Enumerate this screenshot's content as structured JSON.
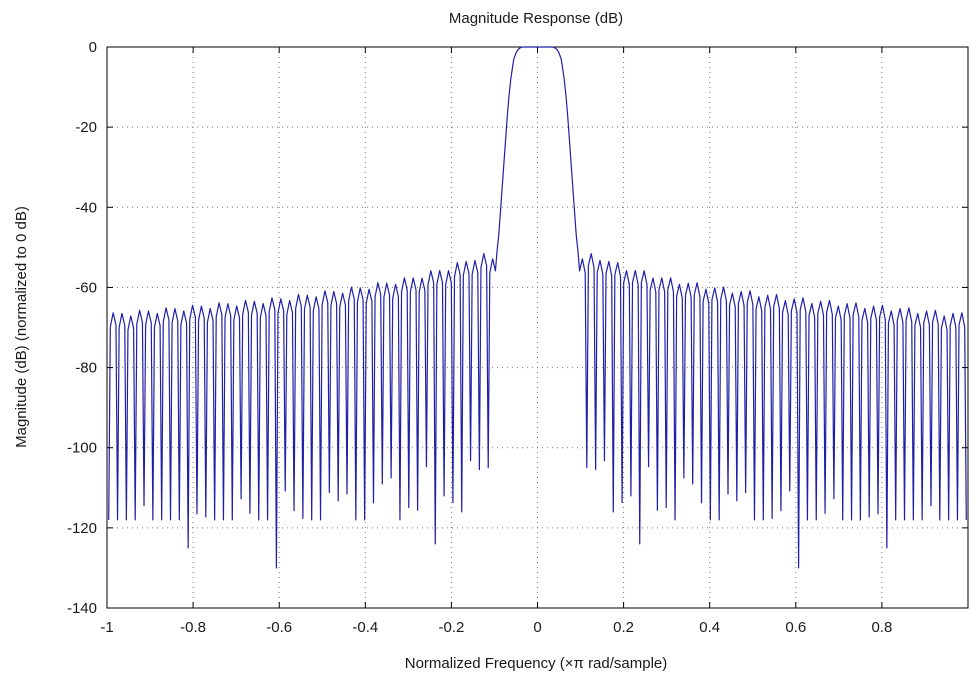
{
  "chart_data": {
    "type": "line",
    "title": "Magnitude Response (dB)",
    "xlabel": "Normalized Frequency (×π rad/sample)",
    "ylabel": "Magnitude (dB) (normalized to 0 dB)",
    "xlim": [
      -1,
      1
    ],
    "ylim": [
      -140,
      0
    ],
    "grid": true,
    "x_ticks": [
      -1,
      -0.8,
      -0.6,
      -0.4,
      -0.2,
      0,
      0.2,
      0.4,
      0.6,
      0.8
    ],
    "x_tick_labels": [
      "-1",
      "-0.8",
      "-0.6",
      "-0.4",
      "-0.2",
      "0",
      "0.2",
      "0.4",
      "0.6",
      "0.8"
    ],
    "y_ticks": [
      0,
      -20,
      -40,
      -60,
      -80,
      -100,
      -120,
      -140
    ],
    "y_tick_labels": [
      "0",
      "-20",
      "-40",
      "-60",
      "-80",
      "-100",
      "-120",
      "-140"
    ],
    "series": [
      {
        "color": "#1f1fa8",
        "passband": {
          "x": [
            -0.058,
            -0.055,
            -0.05,
            -0.045,
            -0.04,
            -0.035,
            -0.03,
            -0.02,
            -0.01,
            0,
            0.01,
            0.02,
            0.03,
            0.035,
            0.04,
            0.045,
            0.05,
            0.055,
            0.058
          ],
          "y": [
            -5,
            -3,
            -1.5,
            -0.6,
            -0.2,
            0,
            0,
            0,
            0,
            0,
            0,
            0,
            0,
            0,
            -0.2,
            -0.6,
            -1.5,
            -3,
            -5
          ]
        },
        "transition": {
          "x": [
            0.058,
            0.062,
            0.066,
            0.07,
            0.074,
            0.078,
            0.082,
            0.086,
            0.09,
            0.094
          ],
          "y": [
            -5,
            -8,
            -12,
            -17,
            -23,
            -29,
            -35,
            -41,
            -47,
            -51
          ]
        },
        "stopband_ripple_peaks": {
          "x": [
            0.1,
            0.13,
            0.2,
            0.3,
            0.4,
            0.5,
            0.6,
            0.7,
            0.8,
            0.9,
            1.0
          ],
          "y": [
            -53,
            -52,
            -55,
            -58,
            -60,
            -61.5,
            -63,
            -64,
            -65,
            -66,
            -67
          ]
        },
        "stopband_nulls": {
          "x": [
            0.094,
            0.2,
            0.3,
            0.4,
            0.5,
            0.6,
            0.7,
            0.8,
            0.9,
            1.0
          ],
          "y": [
            -108,
            -110,
            -112,
            -115,
            -117,
            -119,
            -120,
            -121,
            -122,
            -123
          ]
        },
        "deep_nulls": {
          "x": [
            -0.814,
            -0.607,
            -0.232,
            0.235,
            0.61,
            0.812
          ],
          "y": [
            -125,
            -130,
            -124,
            -124,
            -130,
            -125
          ]
        },
        "ripple_spacing": 0.0205
      }
    ]
  }
}
